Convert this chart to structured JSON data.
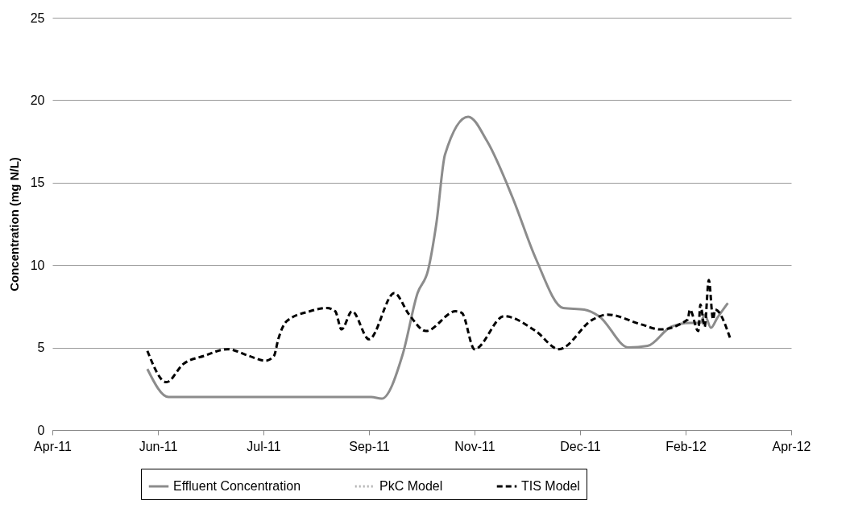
{
  "chart_data": {
    "type": "line",
    "ylabel": "Concentration (mg N/L)",
    "xlim": [
      "2011-04-17",
      "2012-04-01"
    ],
    "xticks": [
      {
        "value": "2011-04-17",
        "label": "Apr-11"
      },
      {
        "value": "2011-06-06",
        "label": "Jun-11"
      },
      {
        "value": "2011-07-26",
        "label": "Jul-11"
      },
      {
        "value": "2011-09-14",
        "label": "Sep-11"
      },
      {
        "value": "2011-11-03",
        "label": "Nov-11"
      },
      {
        "value": "2011-12-23",
        "label": "Dec-11"
      },
      {
        "value": "2012-02-11",
        "label": "Feb-12"
      },
      {
        "value": "2012-04-01",
        "label": "Apr-12"
      }
    ],
    "ylim": [
      0,
      25
    ],
    "yticks": [
      0,
      5,
      10,
      15,
      20,
      25
    ],
    "grid": "y",
    "legend": "bottom",
    "series": [
      {
        "name": "Effluent Concentration",
        "color": "#8c8c8c",
        "line_style": "solid",
        "x": [
          "2011-06-01",
          "2011-06-11",
          "2011-07-15",
          "2011-08-20",
          "2011-09-15",
          "2011-09-20",
          "2011-09-30",
          "2011-10-07",
          "2011-10-12",
          "2011-10-16",
          "2011-10-20",
          "2011-10-31",
          "2011-11-09",
          "2011-11-21",
          "2011-12-02",
          "2011-12-15",
          "2011-12-25",
          "2012-01-01",
          "2012-01-15",
          "2012-01-24",
          "2012-02-04",
          "2012-02-13",
          "2012-02-18",
          "2012-02-20",
          "2012-02-23",
          "2012-02-26",
          "2012-03-02"
        ],
        "values": [
          3.7,
          2.0,
          2.0,
          2.0,
          2.0,
          1.9,
          4.6,
          8.3,
          9.7,
          12.6,
          16.7,
          19.0,
          17.5,
          14.1,
          10.4,
          7.4,
          7.3,
          6.9,
          5.0,
          5.1,
          6.25,
          6.5,
          6.5,
          7.0,
          6.2,
          6.8,
          7.7
        ]
      },
      {
        "name": "PkC Model",
        "color": "#b3b3b3",
        "line_style": "dotted"
      },
      {
        "name": "TIS Model",
        "color": "#000000",
        "line_style": "dashed",
        "x": [
          "2011-06-01",
          "2011-06-10",
          "2011-06-18",
          "2011-06-28",
          "2011-07-09",
          "2011-07-19",
          "2011-07-27",
          "2011-07-31",
          "2011-08-02",
          "2011-08-06",
          "2011-08-17",
          "2011-08-25",
          "2011-08-29",
          "2011-09-01",
          "2011-09-06",
          "2011-09-14",
          "2011-09-26",
          "2011-10-03",
          "2011-10-11",
          "2011-10-25",
          "2011-10-28",
          "2011-11-03",
          "2011-11-17",
          "2011-12-02",
          "2011-12-13",
          "2011-12-29",
          "2012-01-05",
          "2012-01-21",
          "2012-01-30",
          "2012-02-12",
          "2012-02-13",
          "2012-02-17",
          "2012-02-18",
          "2012-02-20",
          "2012-02-22",
          "2012-02-24",
          "2012-02-25",
          "2012-03-03"
        ],
        "values": [
          4.8,
          2.9,
          4.0,
          4.5,
          4.9,
          4.5,
          4.2,
          4.5,
          5.5,
          6.6,
          7.2,
          7.4,
          7.2,
          6.1,
          7.2,
          5.5,
          8.3,
          7.0,
          6.0,
          7.2,
          7.1,
          4.9,
          6.9,
          6.0,
          4.9,
          6.7,
          7.0,
          6.4,
          6.1,
          6.7,
          7.3,
          6.0,
          7.6,
          6.25,
          9.1,
          6.7,
          7.3,
          5.6
        ]
      }
    ]
  }
}
